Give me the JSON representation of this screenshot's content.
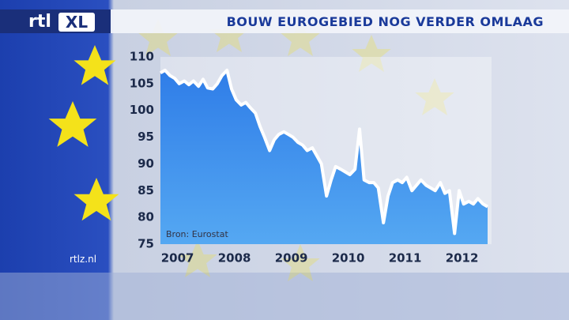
{
  "logo": {
    "left": "rtl",
    "right": "XL"
  },
  "site": "rtlz.nl",
  "chart_data": {
    "type": "line",
    "title": "BOUW EUROGEBIED NOG VERDER OMLAAG",
    "source": "Bron: Eurostat",
    "color": "#ffffff",
    "fill_color": "#2f7de8",
    "x": [
      2006.7,
      2006.78,
      2006.87,
      2006.95,
      2007.03,
      2007.12,
      2007.2,
      2007.28,
      2007.37,
      2007.45,
      2007.53,
      2007.62,
      2007.7,
      2007.78,
      2007.87,
      2007.95,
      2008.03,
      2008.12,
      2008.2,
      2008.28,
      2008.37,
      2008.45,
      2008.53,
      2008.62,
      2008.7,
      2008.78,
      2008.87,
      2008.95,
      2009.03,
      2009.12,
      2009.2,
      2009.28,
      2009.37,
      2009.45,
      2009.53,
      2009.62,
      2009.7,
      2009.78,
      2009.87,
      2009.95,
      2010.03,
      2010.12,
      2010.2,
      2010.28,
      2010.37,
      2010.45,
      2010.53,
      2010.62,
      2010.7,
      2010.78,
      2010.87,
      2010.95,
      2011.03,
      2011.12,
      2011.2,
      2011.28,
      2011.37,
      2011.45,
      2011.53,
      2011.62,
      2011.7,
      2011.78,
      2011.87,
      2011.95,
      2012.03,
      2012.12,
      2012.2,
      2012.28,
      2012.37,
      2012.45
    ],
    "values": [
      107,
      107.5,
      106.5,
      106,
      105,
      105.5,
      104.8,
      105.5,
      104.5,
      105.8,
      104.2,
      104,
      105,
      106.5,
      107.5,
      104,
      102,
      101,
      101.5,
      100.5,
      99.5,
      97,
      95,
      92.5,
      94.5,
      95.5,
      96,
      95.5,
      95,
      94,
      93.5,
      92.5,
      93,
      91.5,
      90,
      84,
      87,
      89.5,
      89,
      88.5,
      88,
      89,
      96.5,
      87,
      86.5,
      86.5,
      85.5,
      79,
      84,
      86.5,
      87,
      86.5,
      87.5,
      85,
      86,
      87,
      86,
      85.5,
      85,
      86.5,
      84.5,
      85,
      77,
      85,
      82.5,
      83,
      82.5,
      83.5,
      82.5,
      82
    ],
    "xlim": [
      2006.7,
      2012.52
    ],
    "ylim": [
      75,
      110
    ],
    "xticks": [
      2007,
      2008,
      2009,
      2010,
      2011,
      2012
    ],
    "yticks": [
      75,
      80,
      85,
      90,
      95,
      100,
      105,
      110
    ]
  }
}
